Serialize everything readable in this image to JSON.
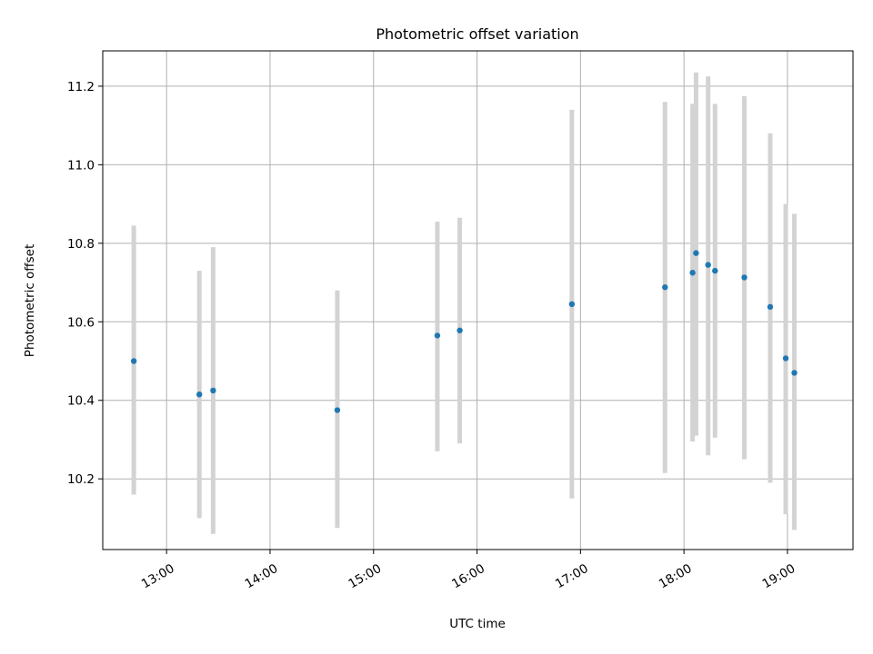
{
  "chart_data": {
    "type": "scatter",
    "title": "Photometric offset variation",
    "xlabel": "UTC time",
    "ylabel": "Photometric offset",
    "x_ticks": [
      "13:00",
      "14:00",
      "15:00",
      "16:00",
      "17:00",
      "18:00",
      "19:00"
    ],
    "y_ticks": [
      "10.2",
      "10.4",
      "10.6",
      "10.8",
      "11.0",
      "11.2"
    ],
    "xlim": [
      "12:23",
      "19:38"
    ],
    "ylim": [
      10.02,
      11.29
    ],
    "grid": true,
    "colors": {
      "point": "#1f77b4",
      "errorbar": "#d3d3d3",
      "grid": "#b0b0b0",
      "axes": "#000000"
    },
    "series": [
      {
        "points": [
          {
            "time": "12:41",
            "y": 10.5,
            "y_low": 10.16,
            "y_high": 10.845
          },
          {
            "time": "13:19",
            "y": 10.415,
            "y_low": 10.1,
            "y_high": 10.73
          },
          {
            "time": "13:27",
            "y": 10.425,
            "y_low": 10.06,
            "y_high": 10.79
          },
          {
            "time": "14:39",
            "y": 10.375,
            "y_low": 10.075,
            "y_high": 10.68
          },
          {
            "time": "15:37",
            "y": 10.565,
            "y_low": 10.27,
            "y_high": 10.855
          },
          {
            "time": "15:50",
            "y": 10.578,
            "y_low": 10.29,
            "y_high": 10.865
          },
          {
            "time": "16:55",
            "y": 10.645,
            "y_low": 10.15,
            "y_high": 11.14
          },
          {
            "time": "17:49",
            "y": 10.688,
            "y_low": 10.215,
            "y_high": 11.16
          },
          {
            "time": "18:05",
            "y": 10.725,
            "y_low": 10.295,
            "y_high": 11.155
          },
          {
            "time": "18:07",
            "y": 10.775,
            "y_low": 10.31,
            "y_high": 11.235
          },
          {
            "time": "18:14",
            "y": 10.745,
            "y_low": 10.26,
            "y_high": 11.225
          },
          {
            "time": "18:18",
            "y": 10.73,
            "y_low": 10.305,
            "y_high": 11.155
          },
          {
            "time": "18:35",
            "y": 10.713,
            "y_low": 10.25,
            "y_high": 11.175
          },
          {
            "time": "18:50",
            "y": 10.638,
            "y_low": 10.19,
            "y_high": 11.08
          },
          {
            "time": "18:59",
            "y": 10.507,
            "y_low": 10.11,
            "y_high": 10.9
          },
          {
            "time": "19:04",
            "y": 10.47,
            "y_low": 10.07,
            "y_high": 10.875
          }
        ]
      }
    ]
  }
}
